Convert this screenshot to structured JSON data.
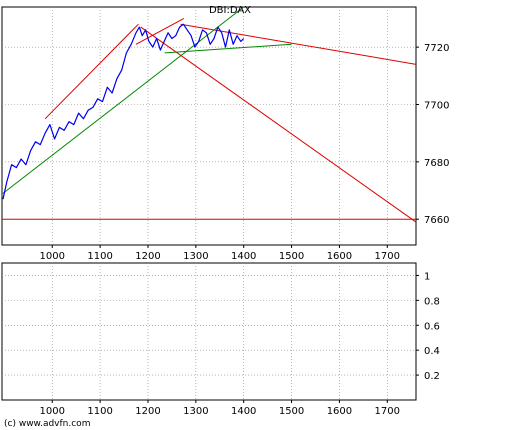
{
  "chart_data": [
    {
      "type": "line",
      "title": "DBI:DAX",
      "x_range": [
        895,
        1760
      ],
      "ylim": [
        7651,
        7734
      ],
      "x_ticks": [
        1000,
        1100,
        1200,
        1300,
        1400,
        1500,
        1600,
        1700
      ],
      "x_tick_labels": [
        "1000",
        "1100",
        "1200",
        "1300",
        "1400",
        "1500",
        "1600",
        "1700"
      ],
      "y_ticks": [
        7660,
        7680,
        7700,
        7720
      ],
      "y_tick_labels": [
        "7660",
        "7680",
        "7700",
        "7720"
      ],
      "grid": true,
      "colors": {
        "price": "#0000ee",
        "resistance": "#dd0000",
        "support": "#008800",
        "grid": "#888888"
      },
      "series": [
        {
          "x": [
            897,
            905,
            915,
            925,
            935,
            945,
            955,
            965,
            975,
            985,
            995,
            1005,
            1015,
            1025,
            1035,
            1045,
            1055,
            1065,
            1075,
            1085,
            1095,
            1105,
            1115,
            1125,
            1135,
            1145,
            1155,
            1165,
            1175,
            1182,
            1188,
            1195,
            1202,
            1210,
            1218,
            1226,
            1234,
            1242,
            1250,
            1258,
            1266,
            1274,
            1282,
            1290,
            1298,
            1306,
            1314,
            1322,
            1330,
            1338,
            1346,
            1354,
            1362,
            1370,
            1378,
            1386,
            1394,
            1400
          ],
          "y": [
            7667,
            7673,
            7679,
            7678,
            7681,
            7679,
            7684,
            7687,
            7686,
            7690,
            7693,
            7688,
            7692,
            7691,
            7694,
            7693,
            7697,
            7695,
            7698,
            7699,
            7702,
            7701,
            7706,
            7704,
            7709,
            7712,
            7718,
            7721,
            7725,
            7727,
            7724,
            7726,
            7722,
            7720,
            7723,
            7719,
            7722,
            7725,
            7723,
            7724,
            7727,
            7728,
            7726,
            7724,
            7720,
            7722,
            7726,
            7725,
            7721,
            7723,
            7727,
            7725,
            7720,
            7726,
            7721,
            7724,
            7722,
            7723
          ]
        }
      ],
      "trendlines": [
        {
          "name": "",
          "color": "#dd0000",
          "x1": 985,
          "y1": 7695,
          "x2": 1180,
          "y2": 7728
        },
        {
          "name": "",
          "color": "#dd0000",
          "x1": 1175,
          "y1": 7721,
          "x2": 1275,
          "y2": 7730
        },
        {
          "name": "",
          "color": "#dd0000",
          "x1": 1268,
          "y1": 7728,
          "x2": 1760,
          "y2": 7714
        },
        {
          "name": "",
          "color": "#dd0000",
          "x1": 1185,
          "y1": 7727,
          "x2": 1760,
          "y2": 7659
        },
        {
          "name": "",
          "color": "#dd0000",
          "x1": 895,
          "y1": 7660,
          "x2": 1760,
          "y2": 7660
        },
        {
          "name": "",
          "color": "#008800",
          "x1": 897,
          "y1": 7669,
          "x2": 1400,
          "y2": 7734
        },
        {
          "name": "",
          "color": "#008800",
          "x1": 1235,
          "y1": 7718,
          "x2": 1500,
          "y2": 7721
        }
      ]
    },
    {
      "type": "line",
      "title": "",
      "x_range": [
        895,
        1760
      ],
      "ylim": [
        0,
        1.1
      ],
      "x_ticks": [
        1000,
        1100,
        1200,
        1300,
        1400,
        1500,
        1600,
        1700
      ],
      "x_tick_labels": [
        "1000",
        "1100",
        "1200",
        "1300",
        "1400",
        "1500",
        "1600",
        "1700"
      ],
      "y_ticks": [
        0.2,
        0.4,
        0.6,
        0.8,
        1
      ],
      "y_tick_labels": [
        "0.2",
        "0.4",
        "0.6",
        "0.8",
        "1"
      ],
      "grid": true,
      "series": []
    }
  ],
  "footer": {
    "credit": "(c) www.advfn.com"
  }
}
